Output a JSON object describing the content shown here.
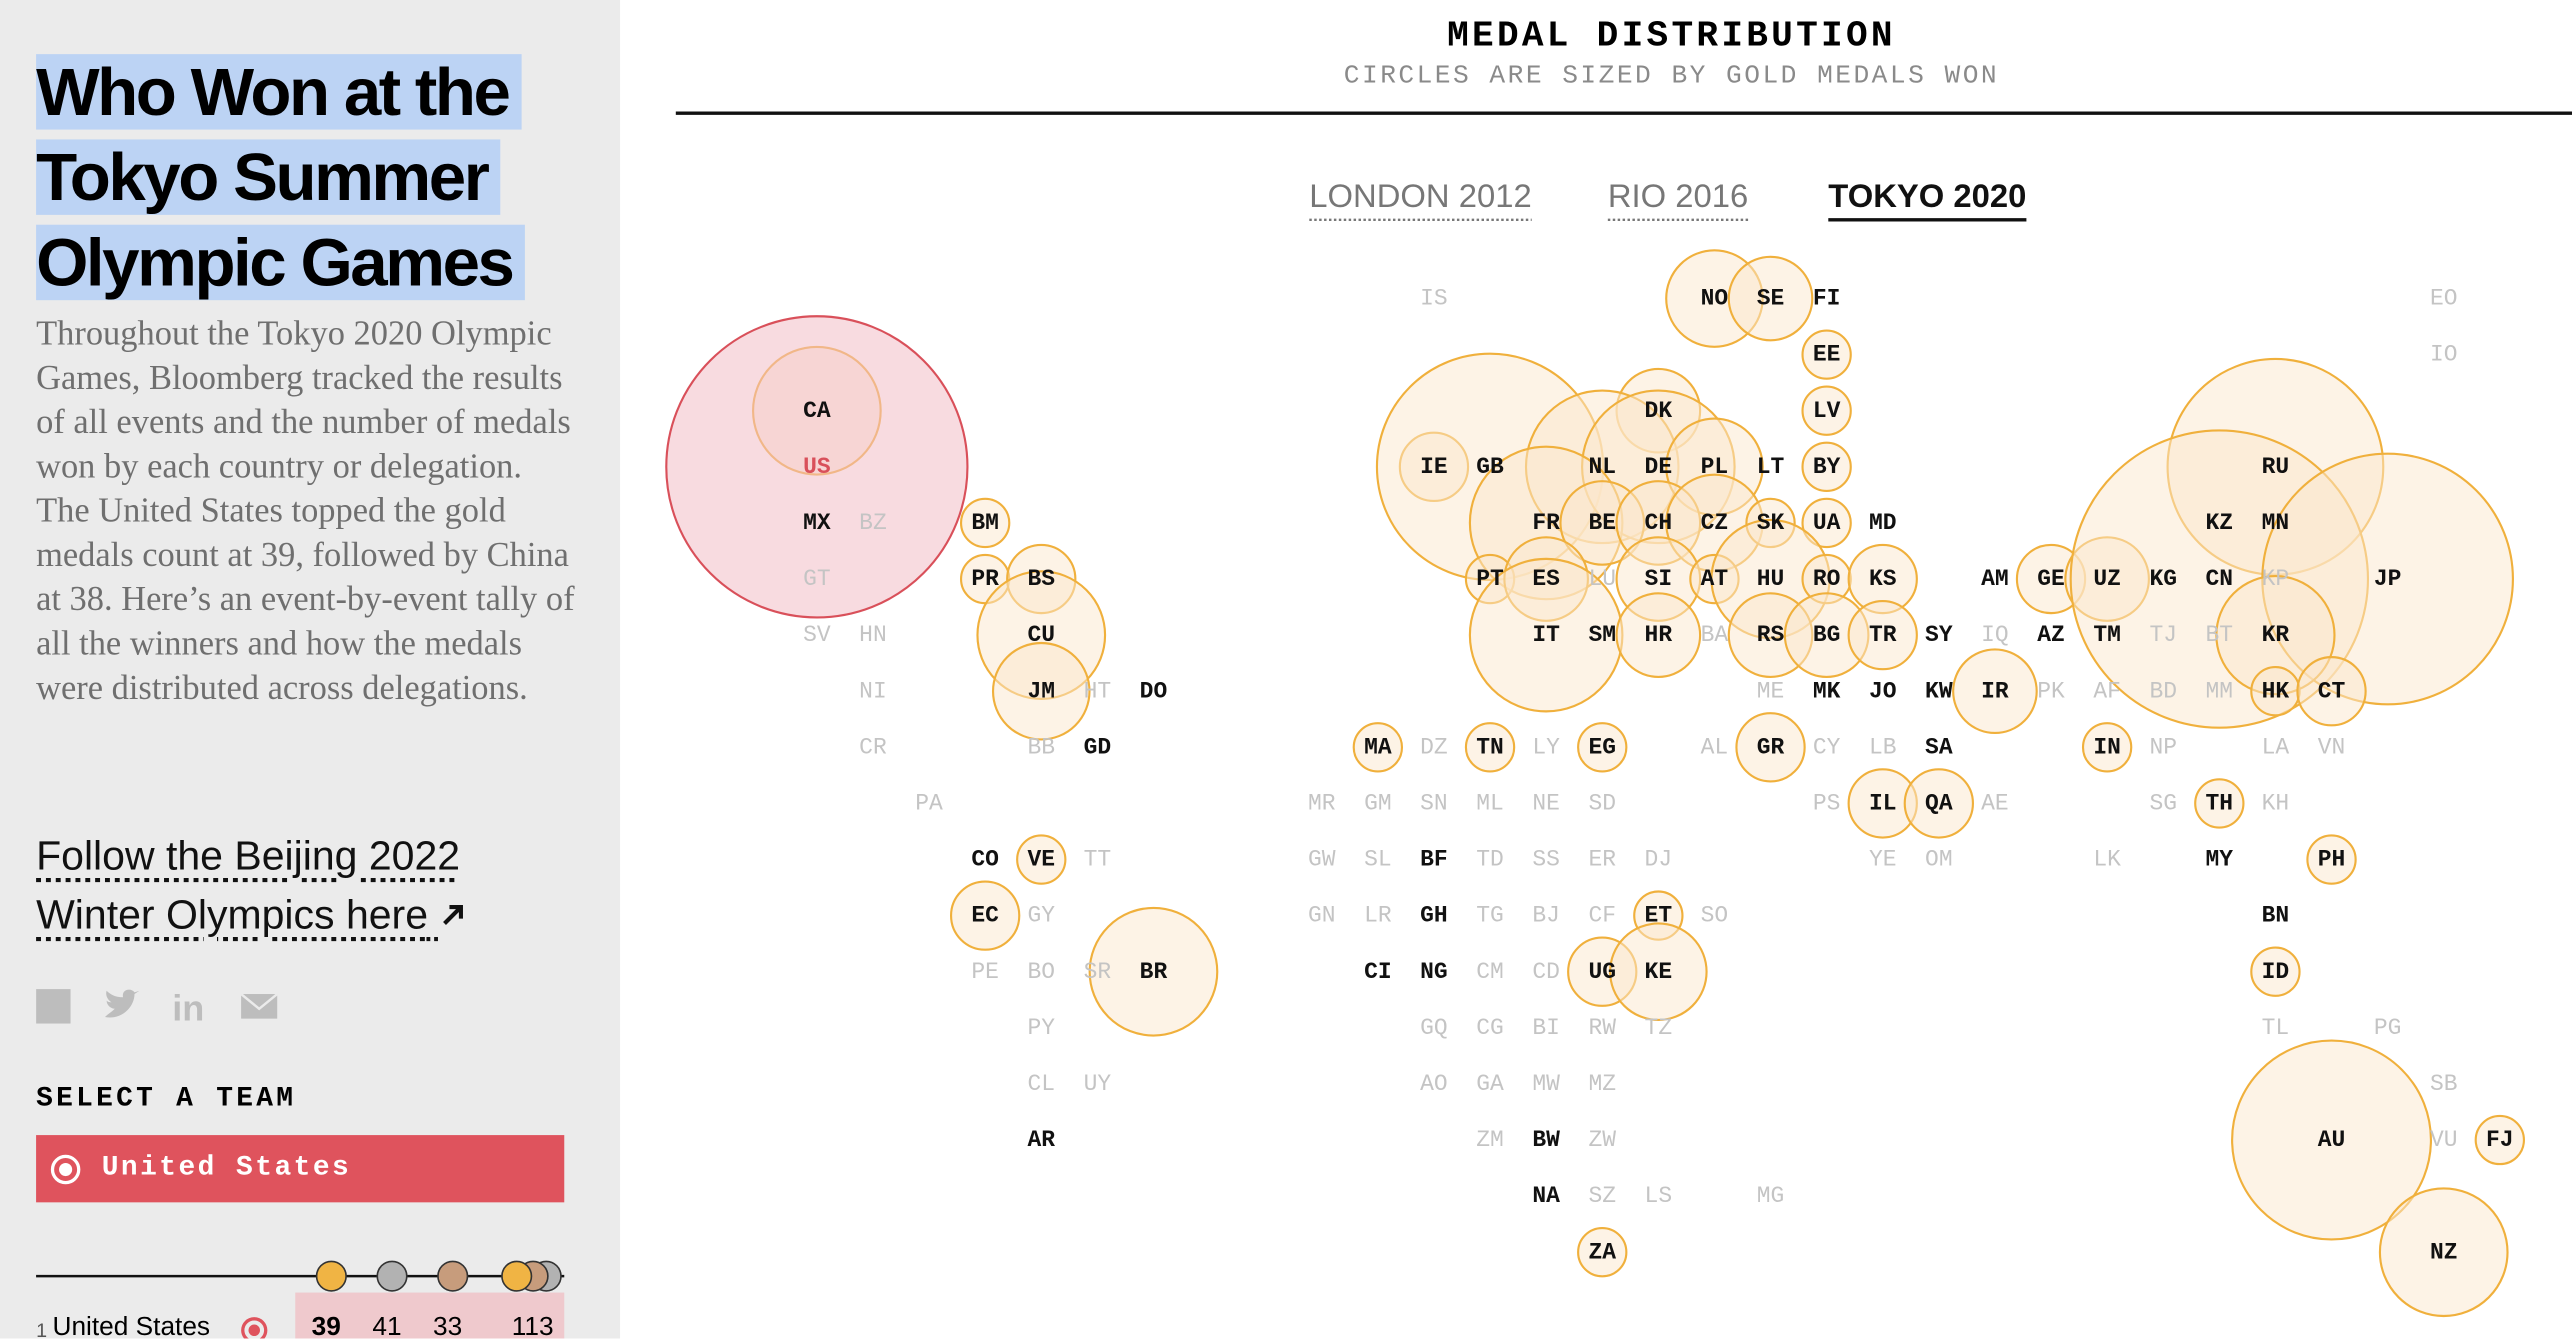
{
  "sidebar": {
    "title": "Who Won at the Tokyo Summer Olympic Games",
    "intro": "Throughout the Tokyo 2020 Olympic Games, Bloomberg tracked the results of all events and the number of medals won by each country or delegation. The United States topped the gold medals count at 39, followed by China at 38. Here’s an event-by-event tally of all the winners and how the medals were distributed across delegations.",
    "link": "Follow the Beijing 2022 Winter Olympics here",
    "select_label": "SELECT A TEAM",
    "selected_team": "United States",
    "standings": [
      {
        "rank": 1,
        "team": "United States",
        "gold": 39,
        "silver": 41,
        "bronze": 33,
        "total": 113
      }
    ]
  },
  "map": {
    "title": "MEDAL DISTRIBUTION",
    "subtitle": "CIRCLES ARE SIZED BY GOLD MEDALS WON",
    "tabs": [
      "LONDON 2012",
      "RIO 2016",
      "TOKYO 2020"
    ],
    "active_tab": 2,
    "rows": [
      [
        {
          "code": "IS",
          "won": false
        },
        {
          "code": "NO",
          "won": true,
          "gold": 4
        },
        {
          "code": "SE",
          "won": true,
          "gold": 3
        },
        {
          "code": "FI",
          "won": true
        },
        {
          "code": "EO",
          "won": false
        }
      ],
      [
        {
          "code": "EE",
          "won": true,
          "gold": 1
        },
        {
          "code": "IO",
          "won": false
        }
      ],
      [
        {
          "code": "CA",
          "won": true,
          "gold": 7
        },
        {
          "code": "DK",
          "won": true,
          "gold": 3
        },
        {
          "code": "LV",
          "won": true,
          "gold": 1
        }
      ],
      [
        {
          "code": "US",
          "won": true,
          "gold": 39,
          "selected": true
        },
        {
          "code": "IE",
          "won": true,
          "gold": 2
        },
        {
          "code": "GB",
          "won": true,
          "gold": 22
        },
        {
          "code": "NL",
          "won": true,
          "gold": 10
        },
        {
          "code": "DE",
          "won": true,
          "gold": 10
        },
        {
          "code": "PL",
          "won": true,
          "gold": 4
        },
        {
          "code": "LT",
          "won": true
        },
        {
          "code": "BY",
          "won": true,
          "gold": 1
        },
        {
          "code": "RU",
          "won": true,
          "gold": 20
        }
      ],
      [
        {
          "code": "MX",
          "won": true
        },
        {
          "code": "BZ",
          "won": false
        },
        {
          "code": "BM",
          "won": true,
          "gold": 1
        },
        {
          "code": "FR",
          "won": true,
          "gold": 10
        },
        {
          "code": "BE",
          "won": true,
          "gold": 3
        },
        {
          "code": "CH",
          "won": true,
          "gold": 3
        },
        {
          "code": "CZ",
          "won": true,
          "gold": 4
        },
        {
          "code": "SK",
          "won": true,
          "gold": 1
        },
        {
          "code": "UA",
          "won": true,
          "gold": 1
        },
        {
          "code": "MD",
          "won": true
        },
        {
          "code": "KZ",
          "won": true
        },
        {
          "code": "MN",
          "won": true
        }
      ],
      [
        {
          "code": "GT",
          "won": false
        },
        {
          "code": "PR",
          "won": true,
          "gold": 1
        },
        {
          "code": "BS",
          "won": true,
          "gold": 2
        },
        {
          "code": "PT",
          "won": true,
          "gold": 1
        },
        {
          "code": "ES",
          "won": true,
          "gold": 3
        },
        {
          "code": "LU",
          "won": false
        },
        {
          "code": "SI",
          "won": true,
          "gold": 3
        },
        {
          "code": "AT",
          "won": true,
          "gold": 1
        },
        {
          "code": "HU",
          "won": true,
          "gold": 6
        },
        {
          "code": "RO",
          "won": true,
          "gold": 1
        },
        {
          "code": "KS",
          "won": true,
          "gold": 2
        },
        {
          "code": "AM",
          "won": true
        },
        {
          "code": "GE",
          "won": true,
          "gold": 2
        },
        {
          "code": "UZ",
          "won": true,
          "gold": 3
        },
        {
          "code": "KG",
          "won": true
        },
        {
          "code": "CN",
          "won": true,
          "gold": 38
        },
        {
          "code": "KP",
          "won": false
        },
        {
          "code": "JP",
          "won": true,
          "gold": 27
        }
      ],
      [
        {
          "code": "SV",
          "won": false
        },
        {
          "code": "HN",
          "won": false
        },
        {
          "code": "CU",
          "won": true,
          "gold": 7
        },
        {
          "code": "IT",
          "won": true,
          "gold": 10
        },
        {
          "code": "SM",
          "won": true
        },
        {
          "code": "HR",
          "won": true,
          "gold": 3
        },
        {
          "code": "BA",
          "won": false
        },
        {
          "code": "RS",
          "won": true,
          "gold": 3
        },
        {
          "code": "BG",
          "won": true,
          "gold": 3
        },
        {
          "code": "TR",
          "won": true,
          "gold": 2
        },
        {
          "code": "SY",
          "won": true
        },
        {
          "code": "IQ",
          "won": false
        },
        {
          "code": "AZ",
          "won": true
        },
        {
          "code": "TM",
          "won": true
        },
        {
          "code": "TJ",
          "won": false
        },
        {
          "code": "BT",
          "won": false
        },
        {
          "code": "KR",
          "won": true,
          "gold": 6
        }
      ],
      [
        {
          "code": "NI",
          "won": false
        },
        {
          "code": "JM",
          "won": true,
          "gold": 4
        },
        {
          "code": "HT",
          "won": false
        },
        {
          "code": "DO",
          "won": true
        },
        {
          "code": "ME",
          "won": false
        },
        {
          "code": "MK",
          "won": true
        },
        {
          "code": "JO",
          "won": true
        },
        {
          "code": "KW",
          "won": true
        },
        {
          "code": "IR",
          "won": true,
          "gold": 3
        },
        {
          "code": "PK",
          "won": false
        },
        {
          "code": "AF",
          "won": false
        },
        {
          "code": "BD",
          "won": false
        },
        {
          "code": "MM",
          "won": false
        },
        {
          "code": "HK",
          "won": true,
          "gold": 1
        },
        {
          "code": "CT",
          "won": true,
          "gold": 2
        }
      ],
      [
        {
          "code": "CR",
          "won": false
        },
        {
          "code": "BB",
          "won": false
        },
        {
          "code": "GD",
          "won": true
        },
        {
          "code": "MA",
          "won": true,
          "gold": 1
        },
        {
          "code": "DZ",
          "won": false
        },
        {
          "code": "TN",
          "won": true,
          "gold": 1
        },
        {
          "code": "LY",
          "won": false
        },
        {
          "code": "EG",
          "won": true,
          "gold": 1
        },
        {
          "code": "AL",
          "won": false
        },
        {
          "code": "GR",
          "won": true,
          "gold": 2
        },
        {
          "code": "CY",
          "won": false
        },
        {
          "code": "LB",
          "won": false
        },
        {
          "code": "SA",
          "won": true
        },
        {
          "code": "IN",
          "won": true,
          "gold": 1
        },
        {
          "code": "NP",
          "won": false
        },
        {
          "code": "LA",
          "won": false
        },
        {
          "code": "VN",
          "won": false
        }
      ],
      [
        {
          "code": "PA",
          "won": false
        },
        {
          "code": "MR",
          "won": false
        },
        {
          "code": "GM",
          "won": false
        },
        {
          "code": "SN",
          "won": false
        },
        {
          "code": "ML",
          "won": false
        },
        {
          "code": "NE",
          "won": false
        },
        {
          "code": "SD",
          "won": false
        },
        {
          "code": "PS",
          "won": false
        },
        {
          "code": "IL",
          "won": true,
          "gold": 2
        },
        {
          "code": "QA",
          "won": true,
          "gold": 2
        },
        {
          "code": "AE",
          "won": false
        },
        {
          "code": "SG",
          "won": false
        },
        {
          "code": "TH",
          "won": true,
          "gold": 1
        },
        {
          "code": "KH",
          "won": false
        }
      ],
      [
        {
          "code": "CO",
          "won": true
        },
        {
          "code": "VE",
          "won": true,
          "gold": 1
        },
        {
          "code": "TT",
          "won": false
        },
        {
          "code": "GW",
          "won": false
        },
        {
          "code": "SL",
          "won": false
        },
        {
          "code": "BF",
          "won": true
        },
        {
          "code": "TD",
          "won": false
        },
        {
          "code": "SS",
          "won": false
        },
        {
          "code": "ER",
          "won": false
        },
        {
          "code": "DJ",
          "won": false
        },
        {
          "code": "YE",
          "won": false
        },
        {
          "code": "OM",
          "won": false
        },
        {
          "code": "LK",
          "won": false
        },
        {
          "code": "MY",
          "won": true
        },
        {
          "code": "PH",
          "won": true,
          "gold": 1
        }
      ],
      [
        {
          "code": "EC",
          "won": true,
          "gold": 2
        },
        {
          "code": "GY",
          "won": false
        },
        {
          "code": "GN",
          "won": false
        },
        {
          "code": "LR",
          "won": false
        },
        {
          "code": "GH",
          "won": true
        },
        {
          "code": "TG",
          "won": false
        },
        {
          "code": "BJ",
          "won": false
        },
        {
          "code": "CF",
          "won": false
        },
        {
          "code": "ET",
          "won": true,
          "gold": 1
        },
        {
          "code": "SO",
          "won": false
        },
        {
          "code": "BN",
          "won": true
        }
      ],
      [
        {
          "code": "PE",
          "won": false
        },
        {
          "code": "BO",
          "won": false
        },
        {
          "code": "SR",
          "won": false
        },
        {
          "code": "BR",
          "won": true,
          "gold": 7
        },
        {
          "code": "CI",
          "won": true
        },
        {
          "code": "NG",
          "won": true
        },
        {
          "code": "CM",
          "won": false
        },
        {
          "code": "CD",
          "won": false
        },
        {
          "code": "UG",
          "won": true,
          "gold": 2
        },
        {
          "code": "KE",
          "won": true,
          "gold": 4
        },
        {
          "code": "ID",
          "won": true,
          "gold": 1
        }
      ],
      [
        {
          "code": "PY",
          "won": false
        },
        {
          "code": "GQ",
          "won": false
        },
        {
          "code": "CG",
          "won": false
        },
        {
          "code": "BI",
          "won": false
        },
        {
          "code": "RW",
          "won": false
        },
        {
          "code": "TZ",
          "won": false
        },
        {
          "code": "TL",
          "won": false
        },
        {
          "code": "PG",
          "won": false
        }
      ],
      [
        {
          "code": "CL",
          "won": false
        },
        {
          "code": "UY",
          "won": false
        },
        {
          "code": "AO",
          "won": false
        },
        {
          "code": "GA",
          "won": false
        },
        {
          "code": "MW",
          "won": false
        },
        {
          "code": "MZ",
          "won": false
        },
        {
          "code": "SB",
          "won": false
        }
      ],
      [
        {
          "code": "AR",
          "won": true
        },
        {
          "code": "ZM",
          "won": false
        },
        {
          "code": "BW",
          "won": true
        },
        {
          "code": "ZW",
          "won": false
        },
        {
          "code": "AU",
          "won": true,
          "gold": 17
        },
        {
          "code": "VU",
          "won": false
        },
        {
          "code": "FJ",
          "won": true,
          "gold": 1
        }
      ],
      [
        {
          "code": "NA",
          "won": true
        },
        {
          "code": "SZ",
          "won": false
        },
        {
          "code": "LS",
          "won": false
        },
        {
          "code": "MG",
          "won": false
        }
      ],
      [
        {
          "code": "ZA",
          "won": true,
          "gold": 1
        },
        {
          "code": "NZ",
          "won": true,
          "gold": 7
        }
      ]
    ]
  }
}
